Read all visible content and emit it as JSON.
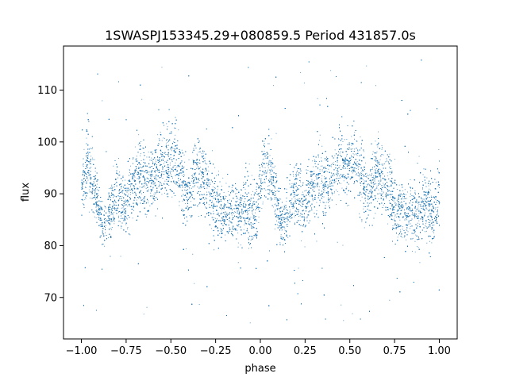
{
  "chart_data": {
    "type": "scatter",
    "title": "1SWASPJ153345.29+080859.5 Period 431857.0s",
    "xlabel": "phase",
    "ylabel": "flux",
    "xlim": [
      -1.1,
      1.1
    ],
    "ylim": [
      62,
      118.5
    ],
    "grid": false,
    "legend": "none",
    "marker_color": "#1f77b4",
    "x_ticks": [
      -1.0,
      -0.75,
      -0.5,
      -0.25,
      0.0,
      0.25,
      0.5,
      0.75,
      1.0
    ],
    "x_tick_labels": [
      "−1.00",
      "−0.75",
      "−0.50",
      "−0.25",
      "0.00",
      "0.25",
      "0.50",
      "0.75",
      "1.00"
    ],
    "y_ticks": [
      70,
      80,
      90,
      100,
      110
    ],
    "y_tick_labels": [
      "70",
      "80",
      "90",
      "100",
      "110"
    ],
    "phase_profile": {
      "phase": [
        -1.0,
        -0.97,
        -0.93,
        -0.88,
        -0.84,
        -0.8,
        -0.76,
        -0.72,
        -0.68,
        -0.64,
        -0.6,
        -0.56,
        -0.52,
        -0.48,
        -0.44,
        -0.4,
        -0.36,
        -0.32,
        -0.28,
        -0.24,
        -0.2,
        -0.16,
        -0.12,
        -0.08,
        -0.04,
        0.0
      ],
      "flux_center": [
        90,
        96,
        91,
        84,
        87,
        90,
        88,
        91,
        94,
        92,
        93,
        96,
        95,
        97,
        93,
        89,
        95,
        93,
        90,
        87,
        86,
        87,
        86,
        88,
        86,
        90
      ],
      "flux_spread": [
        5,
        6,
        5,
        4,
        5,
        6,
        5,
        5,
        6,
        6,
        5,
        6,
        6,
        6,
        6,
        5,
        6,
        6,
        6,
        6,
        5,
        5,
        5,
        6,
        5,
        6
      ]
    },
    "n_points_per_phase_unit": 9000,
    "outlier_fraction": 0.03,
    "outlier_range": [
      65,
      116
    ]
  }
}
